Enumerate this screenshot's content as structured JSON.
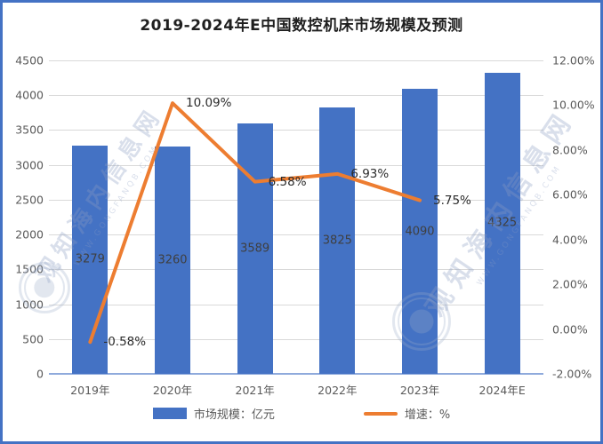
{
  "chart_data": {
    "type": "bar+line",
    "title": "2019-2024年E中国数控机床市场规模及预测",
    "categories": [
      "2019年",
      "2020年",
      "2021年",
      "2022年",
      "2023年",
      "2024年E"
    ],
    "series": [
      {
        "name": "市场规模：亿元",
        "type": "bar",
        "axis": "left",
        "color": "#4472C4",
        "values": [
          3279,
          3260,
          3589,
          3825,
          4090,
          4325
        ],
        "labels": [
          "3279",
          "3260",
          "3589",
          "3825",
          "4090",
          "4325"
        ]
      },
      {
        "name": "增速：%",
        "type": "line",
        "axis": "right",
        "color": "#ED7D31",
        "values": [
          -0.58,
          10.09,
          6.58,
          6.93,
          5.75,
          null
        ],
        "labels": [
          "-0.58%",
          "10.09%",
          "6.58%",
          "6.93%",
          "5.75%",
          ""
        ]
      }
    ],
    "left_axis": {
      "min": 0,
      "max": 4500,
      "step": 500,
      "ticks": [
        "0",
        "500",
        "1000",
        "1500",
        "2000",
        "2500",
        "3000",
        "3500",
        "4000",
        "4500"
      ]
    },
    "right_axis": {
      "min": -2,
      "max": 12,
      "step": 2,
      "ticks": [
        "-2.00%",
        "0.00%",
        "2.00%",
        "4.00%",
        "6.00%",
        "8.00%",
        "10.00%",
        "12.00%"
      ]
    },
    "grid": true,
    "legend_position": "bottom"
  },
  "watermark": {
    "text": "观知海内信息网",
    "url": "WWW.GONGFANQB.COM"
  },
  "colors": {
    "bar": "#4472C4",
    "line": "#ED7D31",
    "border": "#4472C4",
    "grid": "#D9D9D9",
    "baseline": "#8FAADC",
    "axis_text": "#595959",
    "watermark": "#8B9DC3"
  }
}
